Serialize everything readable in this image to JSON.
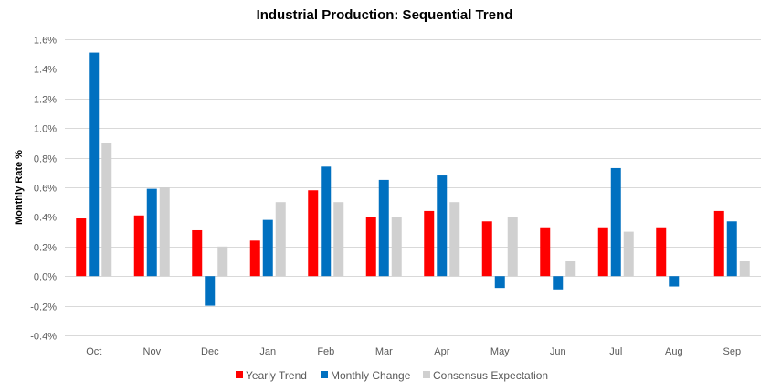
{
  "chart_data": {
    "type": "bar",
    "title": "Industrial Production: Sequential Trend",
    "xlabel": "",
    "ylabel": "Monthly Rate %",
    "categories": [
      "Oct",
      "Nov",
      "Dec",
      "Jan",
      "Feb",
      "Mar",
      "Apr",
      "May",
      "Jun",
      "Jul",
      "Aug",
      "Sep"
    ],
    "series": [
      {
        "name": "Yearly Trend",
        "color": "#ff0000",
        "values": [
          0.39,
          0.41,
          0.31,
          0.24,
          0.58,
          0.4,
          0.44,
          0.37,
          0.33,
          0.33,
          0.33,
          0.44
        ]
      },
      {
        "name": "Monthly Change",
        "color": "#0070c0",
        "values": [
          1.51,
          0.59,
          -0.2,
          0.38,
          0.74,
          0.65,
          0.68,
          -0.08,
          -0.09,
          0.73,
          -0.07,
          0.37
        ]
      },
      {
        "name": "Consensus Expectation",
        "color": "#d0d0d0",
        "values": [
          0.9,
          0.6,
          0.2,
          0.5,
          0.5,
          0.4,
          0.5,
          0.4,
          0.1,
          0.3,
          null,
          0.1
        ]
      }
    ],
    "ylim": [
      -0.4,
      1.6
    ],
    "yticks": [
      -0.4,
      -0.2,
      0.0,
      0.2,
      0.4,
      0.6,
      0.8,
      1.0,
      1.2,
      1.4,
      1.6
    ],
    "ytick_labels": [
      "-0.4%",
      "-0.2%",
      "0.0%",
      "0.2%",
      "0.4%",
      "0.6%",
      "0.8%",
      "1.0%",
      "1.2%",
      "1.4%",
      "1.6%"
    ],
    "grid": true,
    "legend_position": "bottom"
  }
}
